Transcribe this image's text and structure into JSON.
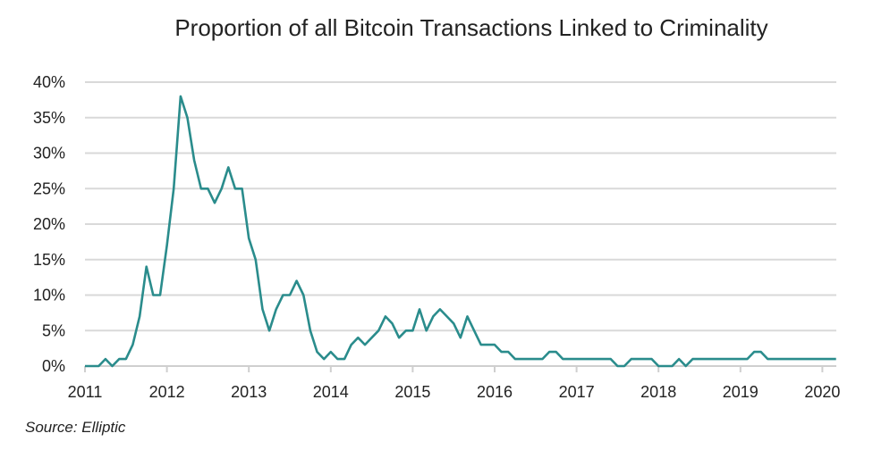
{
  "chart_data": {
    "type": "line",
    "title": "Proportion of all Bitcoin Transactions Linked to Criminality",
    "xlabel": "",
    "ylabel": "",
    "source": "Source: Elliptic",
    "x_ticks": [
      "2011",
      "2012",
      "2013",
      "2014",
      "2015",
      "2016",
      "2017",
      "2018",
      "2019",
      "2020"
    ],
    "y_ticks": [
      "0%",
      "5%",
      "10%",
      "15%",
      "20%",
      "25%",
      "30%",
      "35%",
      "40%"
    ],
    "ylim": [
      0,
      40
    ],
    "grid": true,
    "line_color": "#2a8c8c",
    "x_start": "2011-01",
    "x_step": "month",
    "values": [
      0,
      0,
      0,
      1,
      0,
      1,
      1,
      3,
      7,
      14,
      10,
      10,
      17,
      25,
      38,
      35,
      29,
      25,
      25,
      23,
      25,
      28,
      25,
      25,
      18,
      15,
      8,
      5,
      8,
      10,
      10,
      12,
      10,
      5,
      2,
      1,
      2,
      1,
      1,
      3,
      4,
      3,
      4,
      5,
      7,
      6,
      4,
      5,
      5,
      8,
      5,
      7,
      8,
      7,
      6,
      4,
      7,
      5,
      3,
      3,
      3,
      2,
      2,
      1,
      1,
      1,
      1,
      1,
      2,
      2,
      1,
      1,
      1,
      1,
      1,
      1,
      1,
      1,
      0,
      0,
      1,
      1,
      1,
      1,
      0,
      0,
      0,
      1,
      0,
      1,
      1,
      1,
      1,
      1,
      1,
      1,
      1,
      1,
      2,
      2,
      1,
      1,
      1,
      1,
      1,
      1,
      1,
      1,
      1,
      1,
      1
    ]
  }
}
